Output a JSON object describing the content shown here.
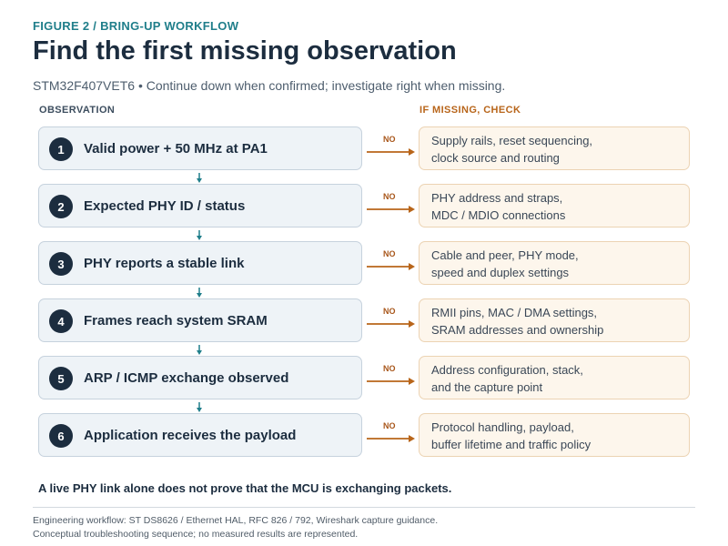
{
  "header": {
    "kicker": "FIGURE 2  /  BRING-UP WORKFLOW",
    "title": "Find the first missing observation",
    "subtitle": "STM32F407VET6  •  Continue down when confirmed; investigate right when missing."
  },
  "columns": {
    "observation": "OBSERVATION",
    "check": "IF MISSING, CHECK"
  },
  "branch_label": "NO",
  "steps": [
    {
      "number": "1",
      "observation": "Valid power + 50 MHz at PA1",
      "check": "Supply rails, reset sequencing,\nclock source and routing"
    },
    {
      "number": "2",
      "observation": "Expected PHY ID / status",
      "check": "PHY address and straps,\nMDC / MDIO connections"
    },
    {
      "number": "3",
      "observation": "PHY reports a stable link",
      "check": "Cable and peer, PHY mode,\nspeed and duplex settings"
    },
    {
      "number": "4",
      "observation": "Frames reach system SRAM",
      "check": "RMII pins, MAC / DMA settings,\nSRAM addresses and ownership"
    },
    {
      "number": "5",
      "observation": "ARP / ICMP exchange observed",
      "check": "Address configuration, stack,\nand the capture point"
    },
    {
      "number": "6",
      "observation": "Application receives the payload",
      "check": "Protocol handling, payload,\nbuffer lifetime and traffic policy"
    }
  ],
  "takeaway": "A live PHY link alone does not prove that the MCU is exchanging packets.",
  "footer": {
    "line1": "Engineering workflow: ST DS8626 / Ethernet HAL, RFC 826 / 792, Wireshark capture guidance.",
    "line2": "Conceptual troubleshooting sequence; no measured results are represented."
  },
  "colors": {
    "teal": "#1f7e8a",
    "navy": "#1c2d3f",
    "orange": "#b8651a",
    "observation_fill": "#eef3f7",
    "check_fill": "#fdf6ec"
  }
}
